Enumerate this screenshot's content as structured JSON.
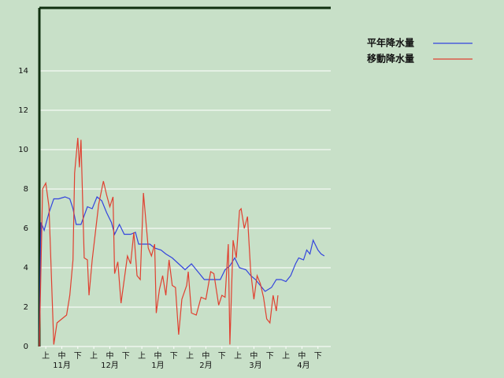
{
  "chart_data": {
    "type": "line",
    "xlim": [
      0,
      182
    ],
    "ylim": [
      0,
      17.2
    ],
    "yticks": [
      0,
      2,
      4,
      6,
      8,
      10,
      12,
      14
    ],
    "grid": true,
    "legend": "top-right",
    "xticks": [
      {
        "value": 4,
        "label": "上"
      },
      {
        "value": 14,
        "label": "中"
      },
      {
        "value": 24,
        "label": "下"
      },
      {
        "value": 34,
        "label": "上"
      },
      {
        "value": 44,
        "label": "中"
      },
      {
        "value": 54,
        "label": "下"
      },
      {
        "value": 64,
        "label": "上"
      },
      {
        "value": 74,
        "label": "中"
      },
      {
        "value": 84,
        "label": "下"
      },
      {
        "value": 94,
        "label": "上"
      },
      {
        "value": 104,
        "label": "中"
      },
      {
        "value": 114,
        "label": "下"
      },
      {
        "value": 124,
        "label": "上"
      },
      {
        "value": 134,
        "label": "中"
      },
      {
        "value": 144,
        "label": "下"
      },
      {
        "value": 154,
        "label": "上"
      },
      {
        "value": 164,
        "label": "中"
      },
      {
        "value": 174,
        "label": "下"
      }
    ],
    "month_ticks": [
      {
        "value": 14,
        "label": "11月"
      },
      {
        "value": 44,
        "label": "12月"
      },
      {
        "value": 74,
        "label": "1月"
      },
      {
        "value": 104,
        "label": "2月"
      },
      {
        "value": 135,
        "label": "3月"
      },
      {
        "value": 165,
        "label": "4月"
      }
    ],
    "series": [
      {
        "name": "平年降水量",
        "color": "#3344dd",
        "x": [
          0,
          1,
          3,
          6,
          9,
          12,
          16,
          19,
          21,
          23,
          26,
          30,
          33,
          36,
          39,
          42,
          45,
          47,
          50,
          53,
          57,
          60,
          62,
          65,
          69,
          72,
          76,
          79,
          83,
          87,
          91,
          95,
          99,
          103,
          106,
          110,
          113,
          116,
          119,
          122,
          125,
          129,
          132,
          135,
          138,
          141,
          145,
          148,
          151,
          154,
          157,
          160,
          162,
          165,
          167,
          169,
          171,
          174,
          176,
          178
        ],
        "values": [
          0,
          6.3,
          5.9,
          6.8,
          7.5,
          7.5,
          7.6,
          7.5,
          7.0,
          6.2,
          6.2,
          7.1,
          7.0,
          7.6,
          7.4,
          6.8,
          6.3,
          5.7,
          6.2,
          5.7,
          5.7,
          5.8,
          5.2,
          5.2,
          5.2,
          5.0,
          4.9,
          4.7,
          4.5,
          4.2,
          3.9,
          4.2,
          3.8,
          3.4,
          3.4,
          3.4,
          3.4,
          3.9,
          4.1,
          4.5,
          4.0,
          3.9,
          3.6,
          3.4,
          3.1,
          2.8,
          3.0,
          3.4,
          3.4,
          3.3,
          3.6,
          4.2,
          4.5,
          4.4,
          4.9,
          4.7,
          5.4,
          4.9,
          4.7,
          4.6
        ]
      },
      {
        "name": "移動降水量",
        "color": "#e04030",
        "x": [
          0,
          2,
          4,
          6,
          9,
          11,
          14,
          17,
          19,
          21,
          22,
          24,
          25,
          26,
          28,
          30,
          31,
          33,
          35,
          37,
          40,
          42,
          44,
          46,
          47,
          49,
          51,
          53,
          55,
          57,
          59,
          61,
          63,
          65,
          68,
          70,
          72,
          73,
          75,
          77,
          79,
          81,
          83,
          85,
          87,
          89,
          92,
          93,
          95,
          98,
          101,
          104,
          107,
          109,
          112,
          114,
          116,
          118,
          119,
          121,
          123,
          125,
          126,
          128,
          130,
          132,
          134,
          136,
          138,
          140,
          142,
          144,
          146,
          148,
          149
        ],
        "values": [
          0,
          8.0,
          8.3,
          7.1,
          0.1,
          1.2,
          1.4,
          1.6,
          2.6,
          4.4,
          8.8,
          10.6,
          9.1,
          10.5,
          4.5,
          4.4,
          2.6,
          4.4,
          5.8,
          7.2,
          8.4,
          7.7,
          7.1,
          7.6,
          3.7,
          4.3,
          2.2,
          3.4,
          4.6,
          4.2,
          5.8,
          3.6,
          3.4,
          7.8,
          5.0,
          4.6,
          5.2,
          1.7,
          2.9,
          3.6,
          2.6,
          4.4,
          3.1,
          3.0,
          0.6,
          2.4,
          3.1,
          3.8,
          1.7,
          1.6,
          2.5,
          2.4,
          3.8,
          3.7,
          2.1,
          2.6,
          2.5,
          5.2,
          0.1,
          5.4,
          4.5,
          6.9,
          7.0,
          6.0,
          6.6,
          3.8,
          2.4,
          3.6,
          3.2,
          2.5,
          1.4,
          1.2,
          2.6,
          1.8,
          2.6
        ]
      }
    ]
  }
}
